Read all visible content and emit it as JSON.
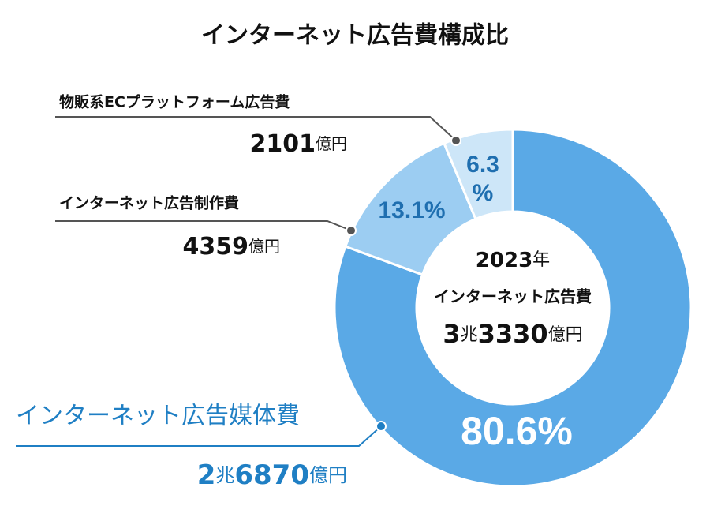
{
  "chart_data": {
    "type": "pie",
    "title": "インターネット広告費構成比",
    "categories": [
      "インターネット広告媒体費",
      "インターネット広告制作費",
      "物販系ECプラットフォーム広告費"
    ],
    "values": [
      80.6,
      13.1,
      6.3
    ],
    "value_labels": [
      "80.6%",
      "13.1%",
      "6.3%"
    ],
    "amounts": [
      "2兆6870億円",
      "4359億円",
      "2101億円"
    ],
    "colors": [
      "#5aa9e6",
      "#9ccdf2",
      "#cde6f8"
    ],
    "center_year": "2023年",
    "center_label": "インターネット広告費",
    "center_total": "3兆3330億円"
  }
}
